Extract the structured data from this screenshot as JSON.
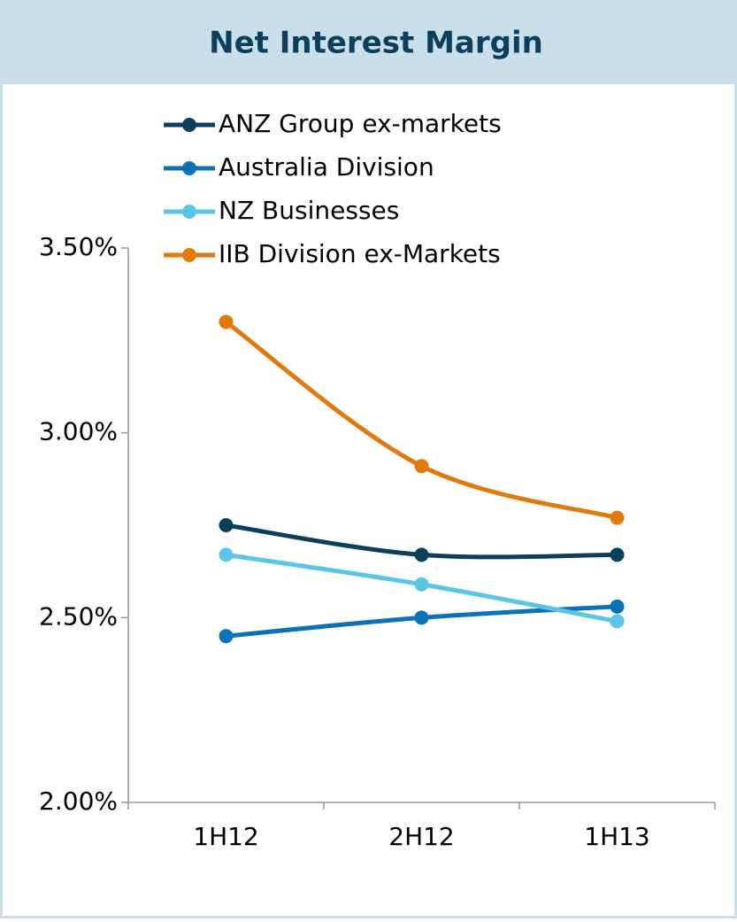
{
  "chart_data": {
    "type": "line",
    "title": "Net Interest Margin",
    "categories": [
      "1H12",
      "2H12",
      "1H13"
    ],
    "series": [
      {
        "name": "ANZ Group ex-markets",
        "color": "#0b3f5c",
        "values": [
          2.75,
          2.67,
          2.67
        ]
      },
      {
        "name": "Australia Division",
        "color": "#0a72b5",
        "values": [
          2.45,
          2.5,
          2.53
        ]
      },
      {
        "name": "NZ Businesses",
        "color": "#5bc5e8",
        "values": [
          2.67,
          2.59,
          2.49
        ]
      },
      {
        "name": "IIB Division ex-Markets",
        "color": "#e07a0c",
        "values": [
          3.3,
          2.91,
          2.77
        ]
      }
    ],
    "ylim": [
      2.0,
      3.5
    ],
    "yticks": [
      {
        "value": 2.0,
        "label": "2.00%"
      },
      {
        "value": 2.5,
        "label": "2.50%"
      },
      {
        "value": 3.0,
        "label": "3.00%"
      },
      {
        "value": 3.5,
        "label": "3.50%"
      }
    ],
    "legend": "top-left"
  }
}
